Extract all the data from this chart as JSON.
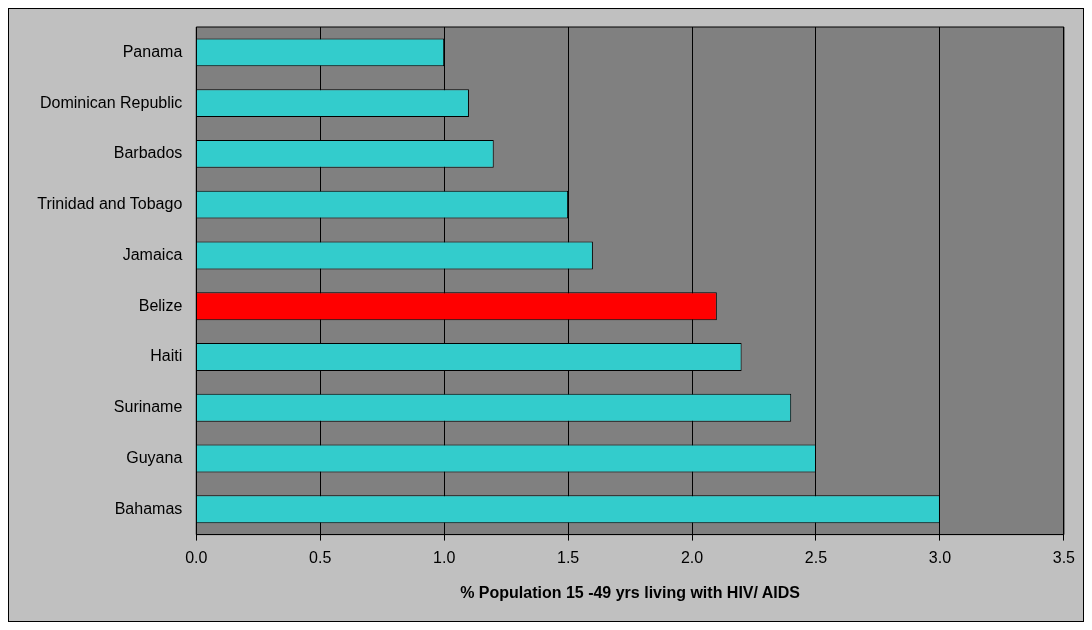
{
  "chart_data": {
    "type": "bar",
    "orientation": "horizontal",
    "categories": [
      "Panama",
      "Dominican Republic",
      "Barbados",
      "Trinidad and Tobago",
      "Jamaica",
      "Belize",
      "Haiti",
      "Suriname",
      "Guyana",
      "Bahamas"
    ],
    "values": [
      1.0,
      1.1,
      1.2,
      1.5,
      1.6,
      2.1,
      2.2,
      2.4,
      2.5,
      3.0
    ],
    "colors": [
      "#33cccc",
      "#33cccc",
      "#33cccc",
      "#33cccc",
      "#33cccc",
      "#ff0000",
      "#33cccc",
      "#33cccc",
      "#33cccc",
      "#33cccc"
    ],
    "xlabel": "% Population 15 -49 yrs living with HIV/ AIDS",
    "xlim": [
      0,
      3.5
    ],
    "xticks": [
      {
        "value": 0,
        "label": "0.0"
      },
      {
        "value": 0.5,
        "label": "0.5"
      },
      {
        "value": 1,
        "label": "1.0"
      },
      {
        "value": 1.5,
        "label": "1.5"
      },
      {
        "value": 2,
        "label": "2.0"
      },
      {
        "value": 2.5,
        "label": "2.5"
      },
      {
        "value": 3,
        "label": "3.0"
      },
      {
        "value": 3.5,
        "label": "3.5"
      }
    ],
    "grid": "x",
    "legend": false
  }
}
